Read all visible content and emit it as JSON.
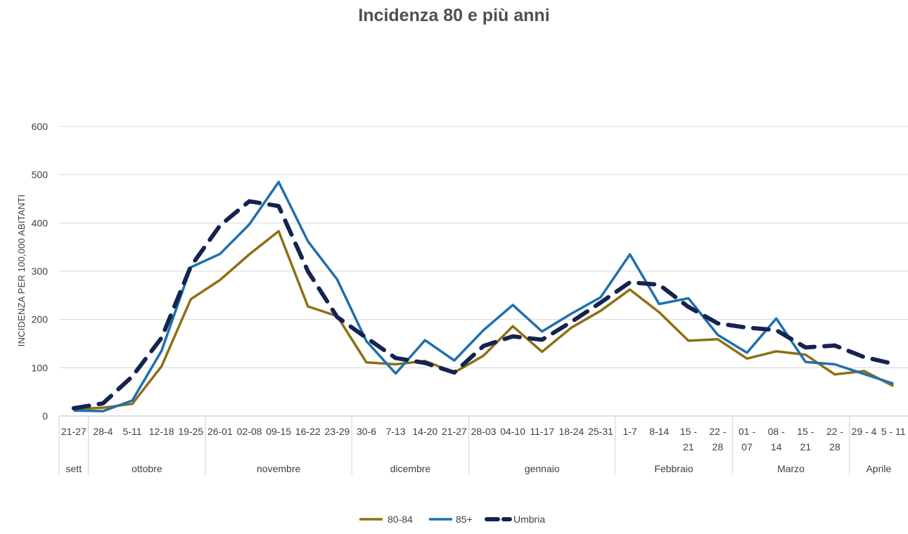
{
  "chart_data": {
    "type": "line",
    "title": "Incidenza 80 e più anni",
    "ylabel": "INCIDENZA PER 100,000 ABITANTI",
    "ylim": [
      0,
      600
    ],
    "yticks": [
      0,
      100,
      200,
      300,
      400,
      500,
      600
    ],
    "grid": true,
    "legend_position": "bottom",
    "categories": [
      [
        "21-27"
      ],
      [
        "28-4"
      ],
      [
        "5-11"
      ],
      [
        "12-18"
      ],
      [
        "19-25"
      ],
      [
        "26-01"
      ],
      [
        "02-08"
      ],
      [
        "09-15"
      ],
      [
        "16-22"
      ],
      [
        "23-29"
      ],
      [
        "30-6"
      ],
      [
        "7-13"
      ],
      [
        "14-20"
      ],
      [
        "21-27"
      ],
      [
        "28-03"
      ],
      [
        "04-10"
      ],
      [
        "11-17"
      ],
      [
        "18-24"
      ],
      [
        "25-31"
      ],
      [
        "1-7"
      ],
      [
        "8-14"
      ],
      [
        "15 -",
        "21"
      ],
      [
        "22 -",
        "28"
      ],
      [
        "01 -",
        "07"
      ],
      [
        "08 -",
        "14"
      ],
      [
        "15 -",
        "21"
      ],
      [
        "22 -",
        "28"
      ],
      [
        "29 - 4"
      ],
      [
        "5 - 11"
      ]
    ],
    "groups": [
      {
        "label": "sett",
        "start": 0,
        "end": 0
      },
      {
        "label": "ottobre",
        "start": 1,
        "end": 4
      },
      {
        "label": "novembre",
        "start": 5,
        "end": 9
      },
      {
        "label": "dicembre",
        "start": 10,
        "end": 13
      },
      {
        "label": "gennaio",
        "start": 14,
        "end": 18
      },
      {
        "label": "Febbraio",
        "start": 19,
        "end": 22
      },
      {
        "label": "Marzo",
        "start": 23,
        "end": 26
      },
      {
        "label": "Aprile",
        "start": 27,
        "end": 28
      }
    ],
    "series": [
      {
        "name": "80-84",
        "color": "#8B7014",
        "dash": false,
        "values": [
          14,
          17,
          25,
          103,
          242,
          282,
          335,
          383,
          227,
          207,
          111,
          107,
          114,
          90,
          125,
          186,
          133,
          183,
          218,
          262,
          215,
          156,
          159,
          119,
          134,
          127,
          86,
          93,
          62
        ]
      },
      {
        "name": "85+",
        "color": "#1F6FAE",
        "dash": false,
        "values": [
          11,
          10,
          32,
          135,
          308,
          336,
          397,
          485,
          362,
          283,
          155,
          88,
          157,
          115,
          178,
          230,
          175,
          212,
          246,
          335,
          232,
          244,
          168,
          131,
          202,
          112,
          107,
          87,
          67
        ]
      },
      {
        "name": "Umbria",
        "color": "#14234F",
        "dash": true,
        "values": [
          16,
          26,
          82,
          162,
          310,
          395,
          445,
          435,
          300,
          205,
          162,
          120,
          110,
          90,
          145,
          165,
          158,
          195,
          235,
          277,
          272,
          226,
          192,
          183,
          178,
          142,
          146,
          122,
          108
        ]
      }
    ]
  }
}
